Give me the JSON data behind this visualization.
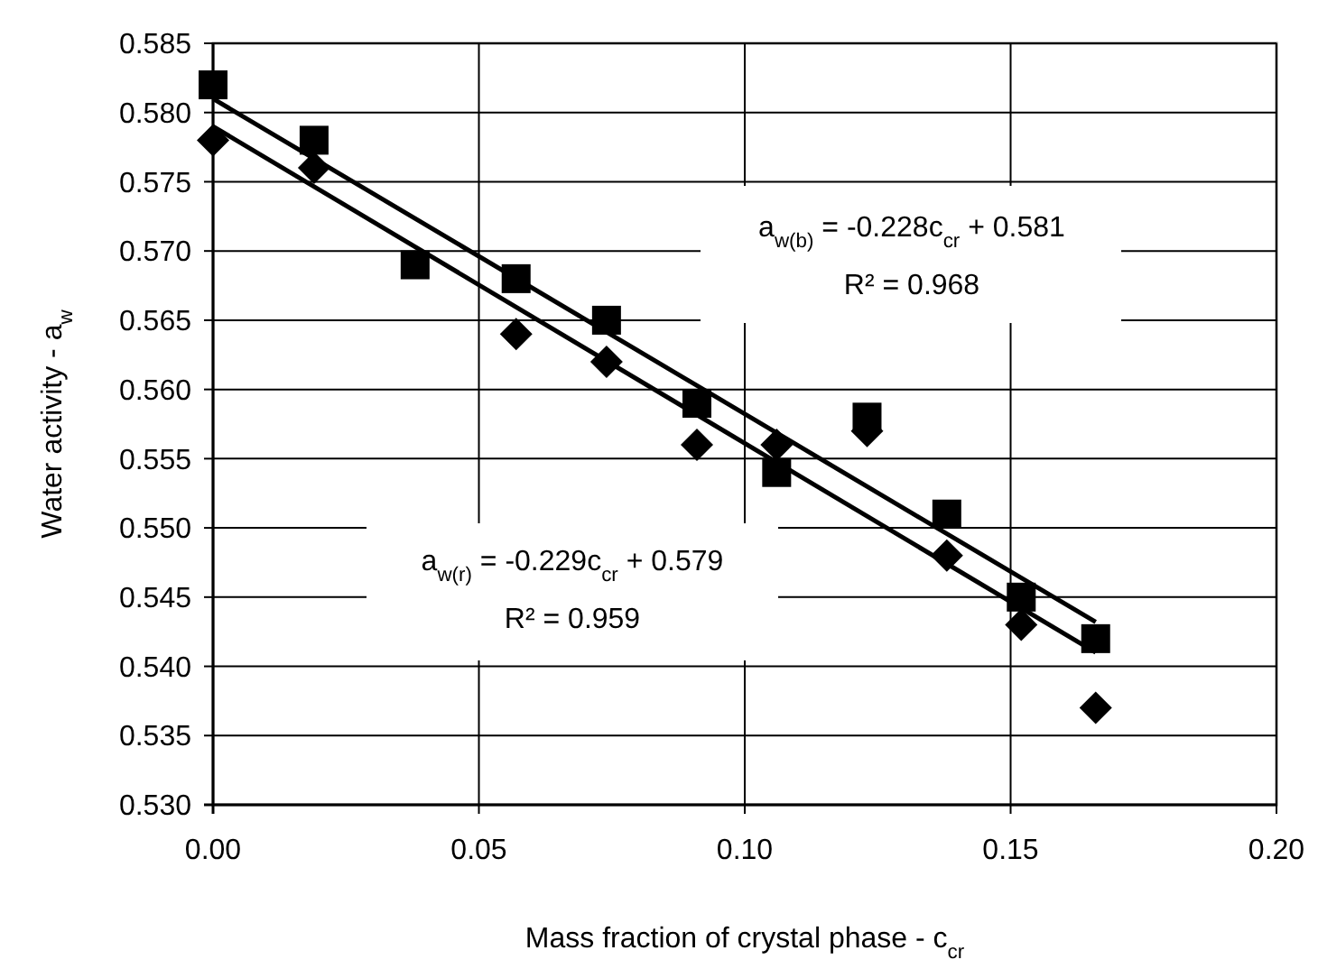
{
  "chart_data": {
    "type": "scatter",
    "xlabel": "Mass fraction of crystal phase - c$_{cr}$",
    "ylabel": "Water activity - a$_{w}$",
    "xlim": [
      0,
      0.2
    ],
    "xticks": [
      {
        "value": 0,
        "label": "0.00"
      },
      0.05,
      {
        "value": 0.1,
        "label": "0.10"
      },
      0.15,
      {
        "value": 0.2,
        "label": "0.20"
      }
    ],
    "ylim": [
      0.53,
      0.585
    ],
    "yticks": [
      {
        "value": 0.53,
        "label": "0.530"
      },
      0.535,
      {
        "value": 0.54,
        "label": "0.540"
      },
      0.545,
      {
        "value": 0.55,
        "label": "0.550"
      },
      0.555,
      {
        "value": 0.56,
        "label": "0.560"
      },
      0.565,
      {
        "value": 0.57,
        "label": "0.570"
      },
      0.575,
      {
        "value": 0.58,
        "label": "0.580"
      },
      0.585
    ],
    "grid": true,
    "series": [
      {
        "marker": "square",
        "color": "#000000",
        "x": [
          0,
          0.019,
          0.038,
          0.057,
          0.074,
          0.091,
          0.106,
          0.123,
          0.138,
          0.152,
          0.166
        ],
        "values": [
          0.582,
          0.578,
          0.569,
          0.568,
          0.565,
          0.559,
          0.554,
          0.558,
          0.551,
          0.545,
          0.542
        ]
      },
      {
        "marker": "diamond",
        "color": "#000000",
        "x": [
          0,
          0.019,
          0.057,
          0.074,
          0.091,
          0.106,
          0.123,
          0.138,
          0.152,
          0.166
        ],
        "values": [
          0.578,
          0.576,
          0.564,
          0.562,
          0.556,
          0.556,
          0.557,
          0.548,
          0.543,
          0.537
        ]
      },
      {
        "type": "line",
        "marker": "none",
        "line_style": "solid",
        "color": "#000000",
        "x": [
          0,
          0.166
        ],
        "values": [
          0.581,
          0.5432
        ]
      },
      {
        "type": "line",
        "marker": "none",
        "line_style": "solid",
        "color": "#000000",
        "x": [
          0,
          0.166
        ],
        "values": [
          0.579,
          0.541
        ]
      }
    ],
    "annotations": [
      "a$_{w(b)}$ = -0.228c$_{cr}$ + 0.581",
      "R² = 0.968",
      "a$_{w(r)}$ = -0.229c$_{cr}$ + 0.579",
      "R² = 0.959"
    ]
  }
}
